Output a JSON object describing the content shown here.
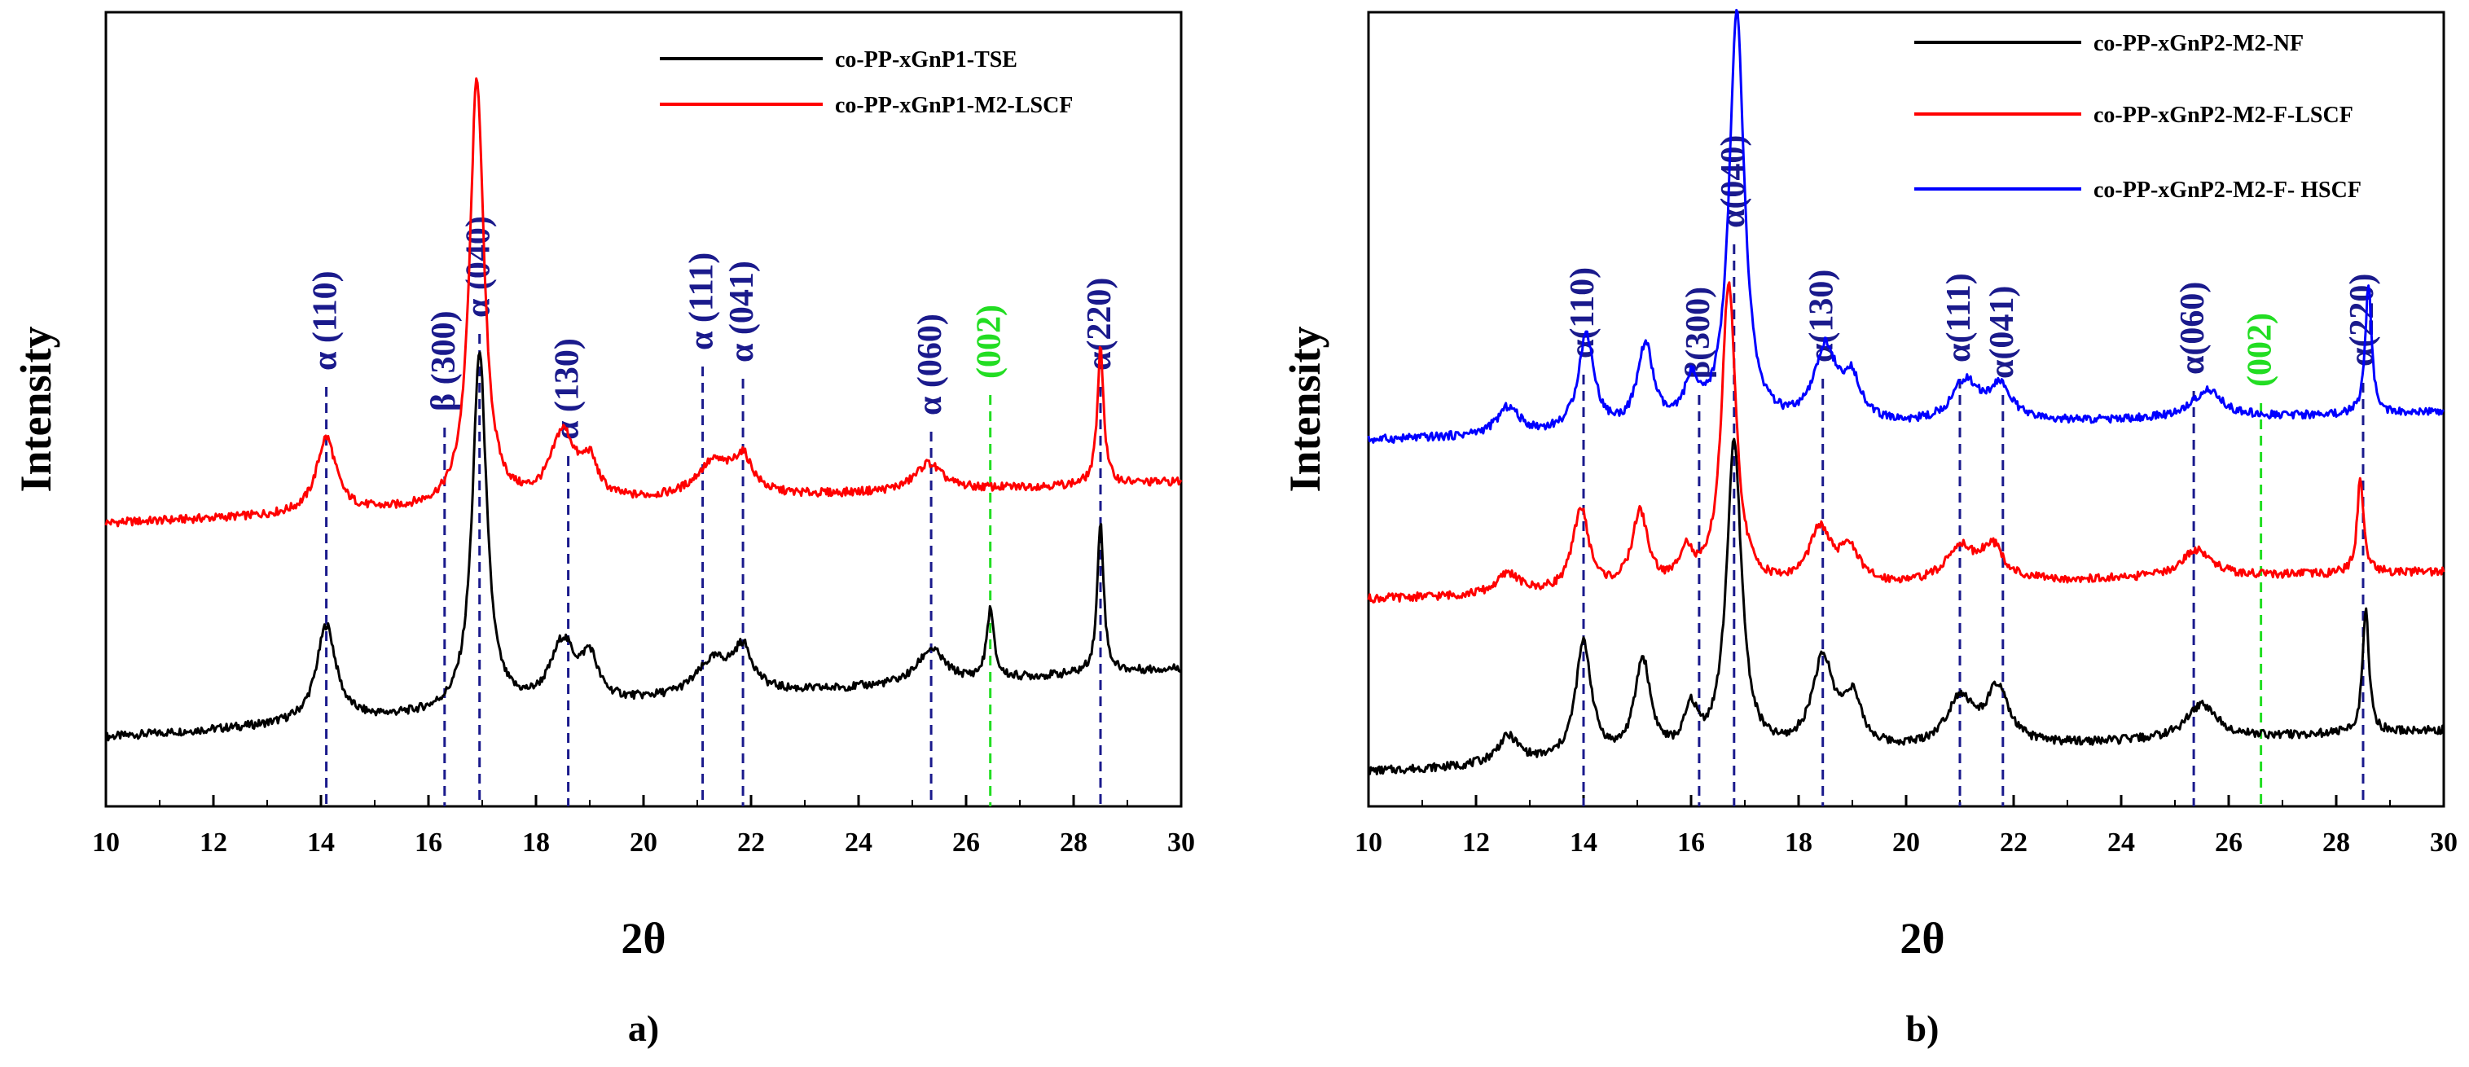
{
  "chart_data": [
    {
      "type": "line",
      "panel": "a)",
      "xlabel": "2θ",
      "ylabel": "Intensity",
      "xlim": [
        10,
        30
      ],
      "xticks": [
        10,
        12,
        14,
        16,
        18,
        20,
        22,
        24,
        26,
        28,
        30
      ],
      "y_axis_ticks_labeled": false,
      "legend_position": "top-right",
      "series": [
        {
          "name": "co-PP-xGnP1-TSE",
          "color": "#000000",
          "baseline": 0.1,
          "slope": 0.005,
          "peaks": [
            {
              "x": 14.1,
              "h": 0.14,
              "w": 0.22
            },
            {
              "x": 16.95,
              "h": 0.52,
              "w": 0.16
            },
            {
              "x": 18.5,
              "h": 0.09,
              "w": 0.28
            },
            {
              "x": 19.0,
              "h": 0.06,
              "w": 0.18
            },
            {
              "x": 21.3,
              "h": 0.05,
              "w": 0.4
            },
            {
              "x": 21.85,
              "h": 0.06,
              "w": 0.22
            },
            {
              "x": 25.35,
              "h": 0.05,
              "w": 0.3
            },
            {
              "x": 26.45,
              "h": 0.1,
              "w": 0.08
            },
            {
              "x": 28.5,
              "h": 0.22,
              "w": 0.07
            }
          ]
        },
        {
          "name": "co-PP-xGnP1-M2-LSCF",
          "color": "#ff0000",
          "baseline": 0.41,
          "slope": 0.003,
          "peaks": [
            {
              "x": 14.1,
              "h": 0.11,
              "w": 0.22
            },
            {
              "x": 16.9,
              "h": 0.62,
              "w": 0.16
            },
            {
              "x": 18.5,
              "h": 0.1,
              "w": 0.28
            },
            {
              "x": 19.0,
              "h": 0.05,
              "w": 0.18
            },
            {
              "x": 21.3,
              "h": 0.05,
              "w": 0.4
            },
            {
              "x": 21.85,
              "h": 0.05,
              "w": 0.22
            },
            {
              "x": 25.3,
              "h": 0.04,
              "w": 0.3
            },
            {
              "x": 28.5,
              "h": 0.2,
              "w": 0.07
            }
          ]
        }
      ],
      "peak_labels": [
        {
          "text": "α (110)",
          "x": 14.1,
          "color": "#1a1a8c"
        },
        {
          "text": "β (300)",
          "x": 16.3,
          "color": "#1a1a8c"
        },
        {
          "text": "α (040)",
          "x": 16.95,
          "color": "#1a1a8c"
        },
        {
          "text": "α (130)",
          "x": 18.6,
          "color": "#1a1a8c"
        },
        {
          "text": "α (111)",
          "x": 21.1,
          "color": "#1a1a8c"
        },
        {
          "text": "α (041)",
          "x": 21.85,
          "color": "#1a1a8c"
        },
        {
          "text": "α (060)",
          "x": 25.35,
          "color": "#1a1a8c"
        },
        {
          "text": "(002)",
          "x": 26.45,
          "color": "#22dd22"
        },
        {
          "text": "α(220)",
          "x": 28.5,
          "color": "#1a1a8c"
        }
      ],
      "caption": "a)"
    },
    {
      "type": "line",
      "panel": "b)",
      "xlabel": "2θ",
      "ylabel": "Intensity",
      "xlim": [
        10,
        30
      ],
      "xticks": [
        10,
        12,
        14,
        16,
        18,
        20,
        22,
        24,
        26,
        28,
        30
      ],
      "y_axis_ticks_labeled": false,
      "legend_position": "top-right",
      "series": [
        {
          "name": "co-PP-xGnP2-M2-NF",
          "color": "#000000",
          "baseline": 0.05,
          "slope": 0.003,
          "peaks": [
            {
              "x": 12.6,
              "h": 0.04,
              "w": 0.25
            },
            {
              "x": 14.0,
              "h": 0.17,
              "w": 0.18
            },
            {
              "x": 15.1,
              "h": 0.14,
              "w": 0.18
            },
            {
              "x": 16.0,
              "h": 0.06,
              "w": 0.15
            },
            {
              "x": 16.8,
              "h": 0.45,
              "w": 0.17
            },
            {
              "x": 18.45,
              "h": 0.13,
              "w": 0.25
            },
            {
              "x": 19.0,
              "h": 0.07,
              "w": 0.2
            },
            {
              "x": 21.0,
              "h": 0.07,
              "w": 0.3
            },
            {
              "x": 21.7,
              "h": 0.08,
              "w": 0.25
            },
            {
              "x": 25.5,
              "h": 0.05,
              "w": 0.35
            },
            {
              "x": 28.55,
              "h": 0.18,
              "w": 0.07
            }
          ]
        },
        {
          "name": "co-PP-xGnP2-M2-F-LSCF",
          "color": "#ff0000",
          "baseline": 0.3,
          "slope": 0.002,
          "peaks": [
            {
              "x": 12.6,
              "h": 0.03,
              "w": 0.25
            },
            {
              "x": 13.95,
              "h": 0.12,
              "w": 0.18
            },
            {
              "x": 15.05,
              "h": 0.11,
              "w": 0.18
            },
            {
              "x": 15.9,
              "h": 0.05,
              "w": 0.15
            },
            {
              "x": 16.7,
              "h": 0.44,
              "w": 0.16
            },
            {
              "x": 18.4,
              "h": 0.08,
              "w": 0.25
            },
            {
              "x": 18.95,
              "h": 0.05,
              "w": 0.2
            },
            {
              "x": 21.0,
              "h": 0.05,
              "w": 0.3
            },
            {
              "x": 21.6,
              "h": 0.05,
              "w": 0.25
            },
            {
              "x": 25.4,
              "h": 0.04,
              "w": 0.35
            },
            {
              "x": 28.45,
              "h": 0.14,
              "w": 0.07
            }
          ]
        },
        {
          "name": "co-PP-xGnP2-M2-F- HSCF",
          "color": "#0000ff",
          "baseline": 0.53,
          "slope": 0.002,
          "peaks": [
            {
              "x": 12.6,
              "h": 0.04,
              "w": 0.25
            },
            {
              "x": 14.05,
              "h": 0.14,
              "w": 0.18
            },
            {
              "x": 15.15,
              "h": 0.12,
              "w": 0.18
            },
            {
              "x": 16.0,
              "h": 0.06,
              "w": 0.15
            },
            {
              "x": 16.85,
              "h": 0.6,
              "w": 0.17
            },
            {
              "x": 18.5,
              "h": 0.11,
              "w": 0.25
            },
            {
              "x": 19.0,
              "h": 0.06,
              "w": 0.2
            },
            {
              "x": 21.1,
              "h": 0.06,
              "w": 0.3
            },
            {
              "x": 21.75,
              "h": 0.05,
              "w": 0.25
            },
            {
              "x": 25.6,
              "h": 0.04,
              "w": 0.35
            },
            {
              "x": 28.6,
              "h": 0.19,
              "w": 0.07
            }
          ]
        }
      ],
      "peak_labels": [
        {
          "text": "α(110)",
          "x": 14.0,
          "color": "#1a1a8c"
        },
        {
          "text": "β(300)",
          "x": 16.15,
          "color": "#1a1a8c"
        },
        {
          "text": "α(040)",
          "x": 16.8,
          "color": "#1a1a8c"
        },
        {
          "text": "α(130)",
          "x": 18.45,
          "color": "#1a1a8c"
        },
        {
          "text": "α(111)",
          "x": 21.0,
          "color": "#1a1a8c"
        },
        {
          "text": "α(041)",
          "x": 21.8,
          "color": "#1a1a8c"
        },
        {
          "text": "α(060)",
          "x": 25.35,
          "color": "#1a1a8c"
        },
        {
          "text": "(002)",
          "x": 26.6,
          "color": "#22dd22"
        },
        {
          "text": "α(220)",
          "x": 28.5,
          "color": "#1a1a8c"
        }
      ],
      "caption": "b)"
    }
  ]
}
